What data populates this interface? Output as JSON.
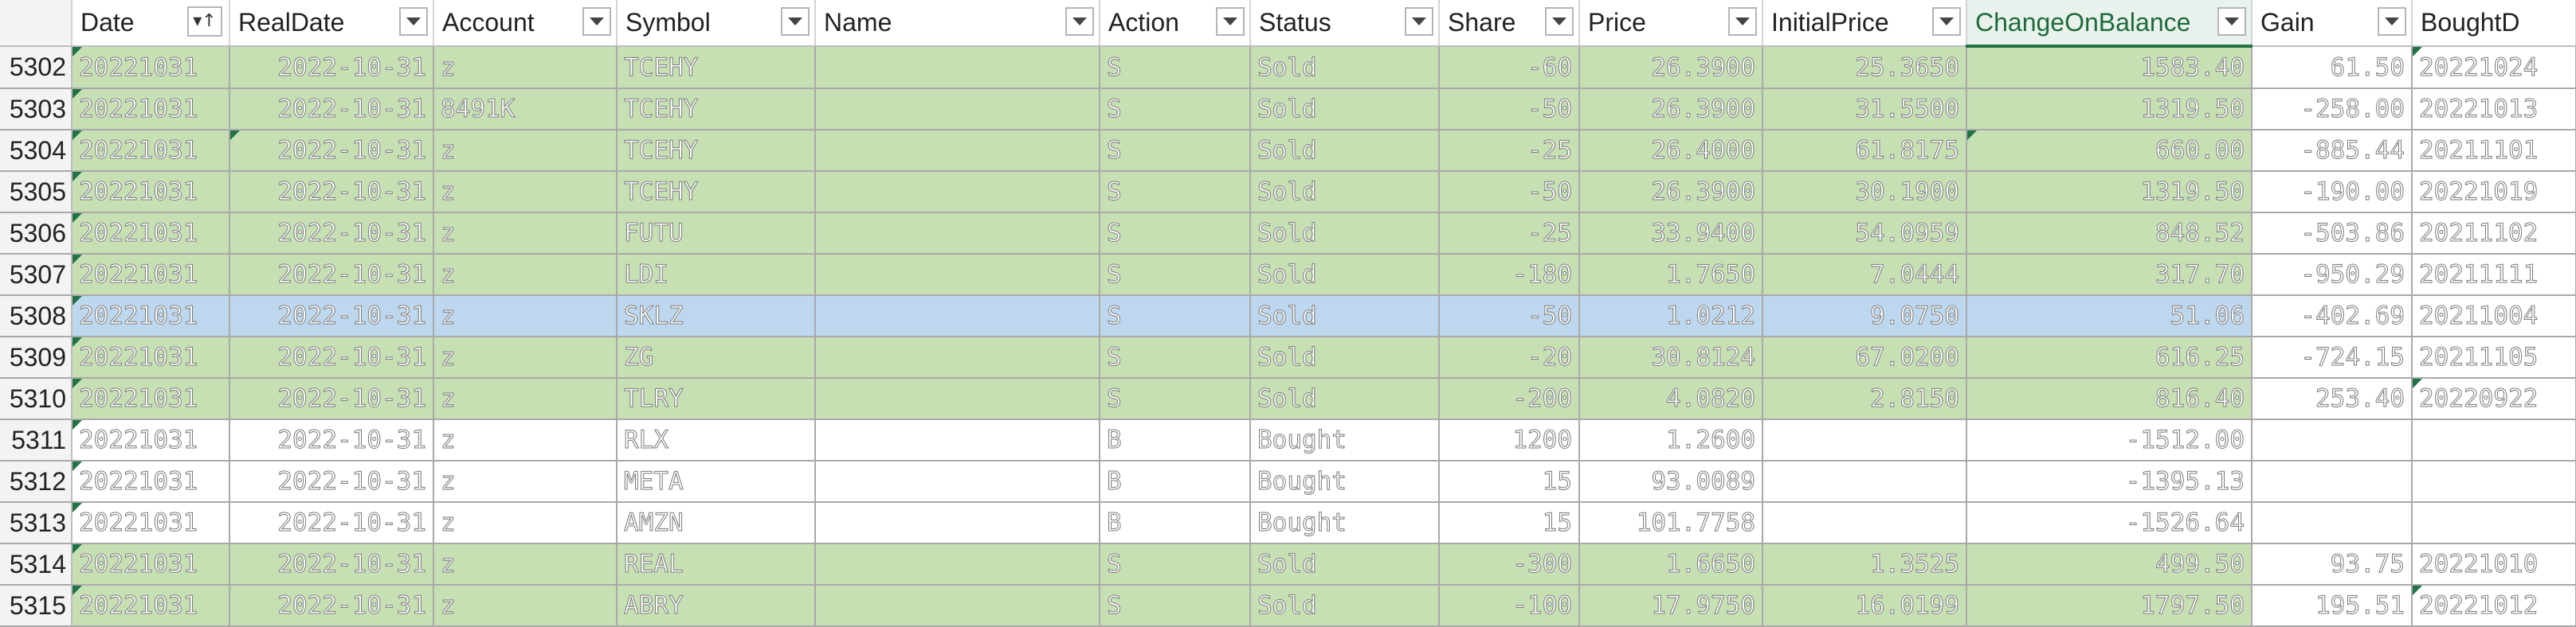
{
  "columns": [
    {
      "key": "date",
      "label": "Date"
    },
    {
      "key": "realdate",
      "label": "RealDate"
    },
    {
      "key": "account",
      "label": "Account"
    },
    {
      "key": "symbol",
      "label": "Symbol"
    },
    {
      "key": "name",
      "label": "Name"
    },
    {
      "key": "action",
      "label": "Action"
    },
    {
      "key": "status",
      "label": "Status"
    },
    {
      "key": "share",
      "label": "Share"
    },
    {
      "key": "price",
      "label": "Price"
    },
    {
      "key": "initialprice",
      "label": "InitialPrice"
    },
    {
      "key": "change",
      "label": "ChangeOnBalance"
    },
    {
      "key": "gain",
      "label": "Gain"
    },
    {
      "key": "boughtdate",
      "label": "BoughtD"
    }
  ],
  "sort_icon": "sort-ascending-icon",
  "filter_icon": "filter-dropdown-icon",
  "colors": {
    "sold_fill": "#c6e0b4",
    "bought_fill": "#ffffff",
    "selected_fill": "#bdd7ee",
    "active_header": "#217346"
  },
  "rows": [
    {
      "row": "5302",
      "date": "20221031",
      "realdate": "2022-10-31",
      "account": "z",
      "symbol": "TCEHY",
      "name": "",
      "action": "S",
      "status": "Sold",
      "share": "-60",
      "price": "26.3900",
      "initialprice": "25.3650",
      "change": "1583.40",
      "gain": "61.50",
      "boughtdate": "20221024"
    },
    {
      "row": "5303",
      "date": "20221031",
      "realdate": "2022-10-31",
      "account": "8491K",
      "symbol": "TCEHY",
      "name": "",
      "action": "S",
      "status": "Sold",
      "share": "-50",
      "price": "26.3900",
      "initialprice": "31.5500",
      "change": "1319.50",
      "gain": "-258.00",
      "boughtdate": "20221013"
    },
    {
      "row": "5304",
      "date": "20221031",
      "realdate": "2022-10-31",
      "account": "z",
      "symbol": "TCEHY",
      "name": "",
      "action": "S",
      "status": "Sold",
      "share": "-25",
      "price": "26.4000",
      "initialprice": "61.8175",
      "change": "660.00",
      "gain": "-885.44",
      "boughtdate": "20211101"
    },
    {
      "row": "5305",
      "date": "20221031",
      "realdate": "2022-10-31",
      "account": "z",
      "symbol": "TCEHY",
      "name": "",
      "action": "S",
      "status": "Sold",
      "share": "-50",
      "price": "26.3900",
      "initialprice": "30.1900",
      "change": "1319.50",
      "gain": "-190.00",
      "boughtdate": "20221019"
    },
    {
      "row": "5306",
      "date": "20221031",
      "realdate": "2022-10-31",
      "account": "z",
      "symbol": "FUTU",
      "name": "",
      "action": "S",
      "status": "Sold",
      "share": "-25",
      "price": "33.9400",
      "initialprice": "54.0959",
      "change": "848.52",
      "gain": "-503.86",
      "boughtdate": "20211102"
    },
    {
      "row": "5307",
      "date": "20221031",
      "realdate": "2022-10-31",
      "account": "z",
      "symbol": "LDI",
      "name": "",
      "action": "S",
      "status": "Sold",
      "share": "-180",
      "price": "1.7650",
      "initialprice": "7.0444",
      "change": "317.70",
      "gain": "-950.29",
      "boughtdate": "20211111"
    },
    {
      "row": "5308",
      "date": "20221031",
      "realdate": "2022-10-31",
      "account": "z",
      "symbol": "SKLZ",
      "name": "",
      "action": "S",
      "status": "Sold",
      "share": "-50",
      "price": "1.0212",
      "initialprice": "9.0750",
      "change": "51.06",
      "gain": "-402.69",
      "boughtdate": "20211004"
    },
    {
      "row": "5309",
      "date": "20221031",
      "realdate": "2022-10-31",
      "account": "z",
      "symbol": "ZG",
      "name": "",
      "action": "S",
      "status": "Sold",
      "share": "-20",
      "price": "30.8124",
      "initialprice": "67.0200",
      "change": "616.25",
      "gain": "-724.15",
      "boughtdate": "20211105"
    },
    {
      "row": "5310",
      "date": "20221031",
      "realdate": "2022-10-31",
      "account": "z",
      "symbol": "TLRY",
      "name": "",
      "action": "S",
      "status": "Sold",
      "share": "-200",
      "price": "4.0820",
      "initialprice": "2.8150",
      "change": "816.40",
      "gain": "253.40",
      "boughtdate": "20220922"
    },
    {
      "row": "5311",
      "date": "20221031",
      "realdate": "2022-10-31",
      "account": "z",
      "symbol": "RLX",
      "name": "",
      "action": "B",
      "status": "Bought",
      "share": "1200",
      "price": "1.2600",
      "initialprice": "",
      "change": "-1512.00",
      "gain": "",
      "boughtdate": ""
    },
    {
      "row": "5312",
      "date": "20221031",
      "realdate": "2022-10-31",
      "account": "z",
      "symbol": "META",
      "name": "",
      "action": "B",
      "status": "Bought",
      "share": "15",
      "price": "93.0089",
      "initialprice": "",
      "change": "-1395.13",
      "gain": "",
      "boughtdate": ""
    },
    {
      "row": "5313",
      "date": "20221031",
      "realdate": "2022-10-31",
      "account": "z",
      "symbol": "AMZN",
      "name": "",
      "action": "B",
      "status": "Bought",
      "share": "15",
      "price": "101.7758",
      "initialprice": "",
      "change": "-1526.64",
      "gain": "",
      "boughtdate": ""
    },
    {
      "row": "5314",
      "date": "20221031",
      "realdate": "2022-10-31",
      "account": "z",
      "symbol": "REAL",
      "name": "",
      "action": "S",
      "status": "Sold",
      "share": "-300",
      "price": "1.6650",
      "initialprice": "1.3525",
      "change": "499.50",
      "gain": "93.75",
      "boughtdate": "20221010"
    },
    {
      "row": "5315",
      "date": "20221031",
      "realdate": "2022-10-31",
      "account": "z",
      "symbol": "ABRY",
      "name": "",
      "action": "S",
      "status": "Sold",
      "share": "-100",
      "price": "17.9750",
      "initialprice": "16.0199",
      "change": "1797.50",
      "gain": "195.51",
      "boughtdate": "20221012"
    }
  ]
}
